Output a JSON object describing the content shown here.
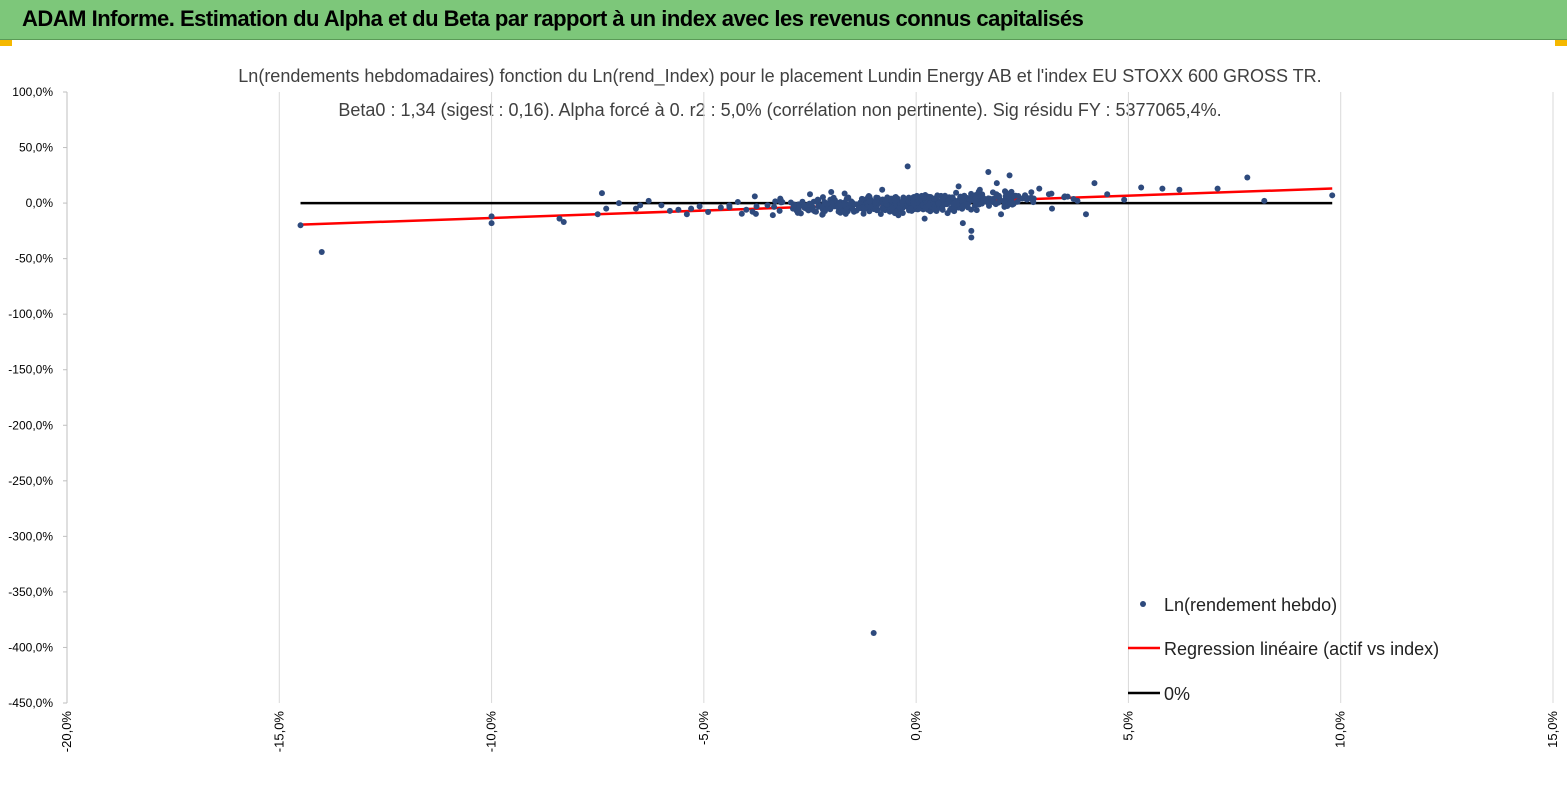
{
  "banner": {
    "title": "ADAM Informe. Estimation du Alpha et du Beta par rapport à un index avec les revenus connus capitalisés",
    "color": "#7dc77a"
  },
  "chart_data": {
    "type": "scatter",
    "title": "Ln(rendements hebdomadaires) fonction du Ln(rend_Index) pour le placement Lundin Energy AB et l'index EU STOXX 600 GROSS TR.",
    "subtitle": "Beta0 : 1,34 (sigest : 0,16). Alpha forcé à 0. r2 : 5,0% (corrélation non pertinente). Sig résidu FY : 5377065,4%.",
    "xlabel": "",
    "ylabel": "",
    "xlim": [
      -20,
      15
    ],
    "ylim": [
      -450,
      100
    ],
    "x_ticks": [
      "-20,0%",
      "-15,0%",
      "-10,0%",
      "-5,0%",
      "0,0%",
      "5,0%",
      "10,0%",
      "15,0%"
    ],
    "y_ticks": [
      "100,0%",
      "50,0%",
      "0,0%",
      "-50,0%",
      "-100,0%",
      "-150,0%",
      "-200,0%",
      "-250,0%",
      "-300,0%",
      "-350,0%",
      "-400,0%",
      "-450,0%"
    ],
    "grid": "vertical",
    "legend_position": "bottom-right",
    "series": [
      {
        "name": "Ln(rendement hebdo)",
        "kind": "points",
        "color": "#2e4a7d",
        "points": [
          [
            -14.5,
            -20
          ],
          [
            -14.0,
            -44
          ],
          [
            -10.0,
            -18
          ],
          [
            -10.0,
            -12
          ],
          [
            -8.4,
            -14
          ],
          [
            -8.3,
            -17
          ],
          [
            -7.5,
            -10
          ],
          [
            -7.4,
            9
          ],
          [
            -7.3,
            -5
          ],
          [
            -7.0,
            0
          ],
          [
            -6.6,
            -5
          ],
          [
            -6.5,
            -2
          ],
          [
            -6.3,
            2
          ],
          [
            -6.0,
            -2
          ],
          [
            -5.8,
            -7
          ],
          [
            -5.6,
            -6
          ],
          [
            -5.4,
            -10
          ],
          [
            -5.3,
            -5
          ],
          [
            -5.1,
            -3
          ],
          [
            -4.9,
            -8
          ],
          [
            -4.6,
            -4
          ],
          [
            -4.4,
            -2
          ],
          [
            -4.2,
            1
          ],
          [
            -4.0,
            -6
          ],
          [
            -3.8,
            6
          ],
          [
            -3.5,
            -2
          ],
          [
            -3.2,
            4
          ],
          [
            -2.9,
            -5
          ],
          [
            -2.5,
            8
          ],
          [
            -2.2,
            -10
          ],
          [
            -2.0,
            10
          ],
          [
            -1.6,
            -3
          ],
          [
            -1.0,
            -387
          ],
          [
            -0.8,
            12
          ],
          [
            -0.5,
            -9
          ],
          [
            -0.3,
            5
          ],
          [
            -0.2,
            33
          ],
          [
            0.2,
            -14
          ],
          [
            0.5,
            7
          ],
          [
            0.8,
            -6
          ],
          [
            1.0,
            15
          ],
          [
            1.1,
            -18
          ],
          [
            1.3,
            -25
          ],
          [
            1.3,
            -31
          ],
          [
            1.5,
            12
          ],
          [
            1.7,
            28
          ],
          [
            1.9,
            18
          ],
          [
            2.0,
            -10
          ],
          [
            2.2,
            25
          ],
          [
            2.6,
            5
          ],
          [
            2.9,
            13
          ],
          [
            3.2,
            -5
          ],
          [
            3.5,
            6
          ],
          [
            3.8,
            2
          ],
          [
            4.0,
            -10
          ],
          [
            4.2,
            18
          ],
          [
            4.5,
            8
          ],
          [
            4.9,
            3
          ],
          [
            5.3,
            14
          ],
          [
            5.8,
            13
          ],
          [
            6.2,
            12
          ],
          [
            7.1,
            13
          ],
          [
            7.8,
            23
          ],
          [
            8.2,
            2
          ],
          [
            9.8,
            7
          ]
        ]
      },
      {
        "name": "Regression linéaire (actif vs index)",
        "kind": "line",
        "color": "#ff0000",
        "points": [
          [
            -14.5,
            -19.4
          ],
          [
            9.8,
            13.1
          ]
        ]
      },
      {
        "name": "0%",
        "kind": "line",
        "color": "#000000",
        "points": [
          [
            -14.5,
            0
          ],
          [
            9.8,
            0
          ]
        ]
      }
    ]
  }
}
